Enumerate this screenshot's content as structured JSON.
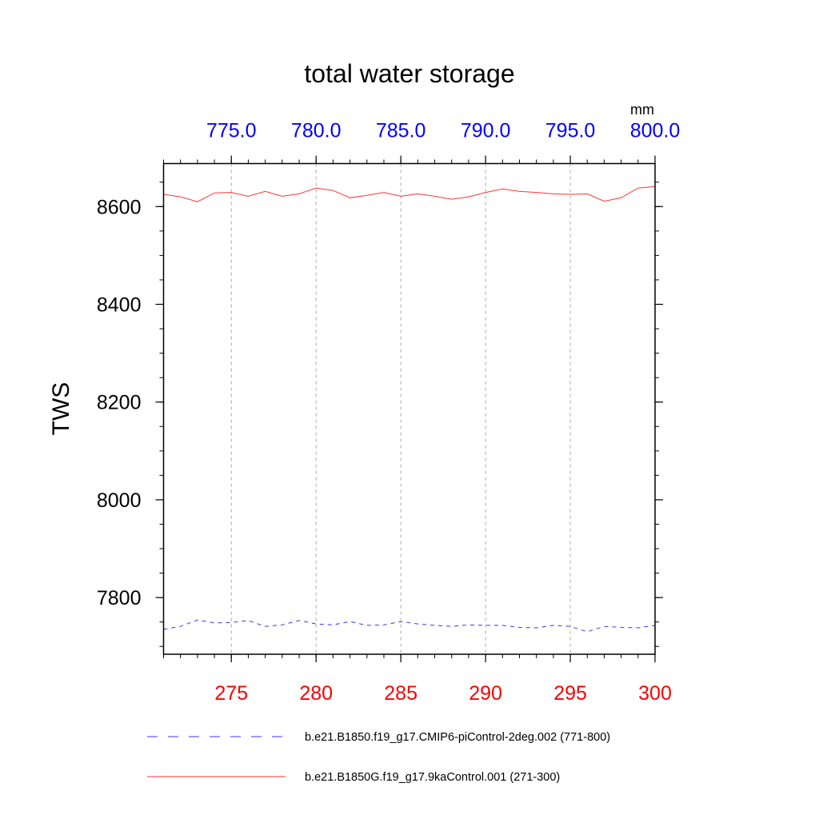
{
  "chart_data": {
    "type": "line",
    "title": "total water storage",
    "ylabel": "TWS",
    "units_label": "mm",
    "ylim": [
      7684,
      8688
    ],
    "y_ticks": [
      7800,
      8000,
      8200,
      8400,
      8600
    ],
    "y_tick_labels": [
      "7800",
      "8000",
      "8200",
      "8400",
      "8600"
    ],
    "x_bottom": {
      "range": [
        271,
        300
      ],
      "ticks": [
        275,
        280,
        285,
        290,
        295,
        300
      ],
      "tick_labels": [
        "275",
        "280",
        "285",
        "290",
        "295",
        "300"
      ],
      "color": "#ff0000"
    },
    "x_top": {
      "range": [
        771,
        800
      ],
      "ticks": [
        775,
        780,
        785,
        790,
        795,
        800
      ],
      "tick_labels": [
        "775.0",
        "780.0",
        "785.0",
        "790.0",
        "795.0",
        "800.0"
      ],
      "color": "#0000ff"
    },
    "grid": "vertical dashed",
    "legend_placement": "bottom",
    "series": [
      {
        "name": "b.e21.B1850.f19_g17.CMIP6-piControl-2deg.002 (771-800)",
        "color": "#0000ff",
        "dash": "dashed",
        "axis": "top",
        "x": [
          771,
          772,
          773,
          774,
          775,
          776,
          777,
          778,
          779,
          780,
          781,
          782,
          783,
          784,
          785,
          786,
          787,
          788,
          789,
          790,
          791,
          792,
          793,
          794,
          795,
          796,
          797,
          798,
          799,
          800
        ],
        "values": [
          7735,
          7741,
          7754,
          7748,
          7749,
          7753,
          7741,
          7744,
          7753,
          7746,
          7744,
          7751,
          7743,
          7744,
          7751,
          7746,
          7743,
          7741,
          7744,
          7743,
          7743,
          7739,
          7738,
          7743,
          7741,
          7730,
          7741,
          7739,
          7738,
          7743
        ]
      },
      {
        "name": "b.e21.B1850G.f19_g17.9kaControl.001 (271-300)",
        "color": "#ff0000",
        "dash": "solid",
        "axis": "bottom",
        "x": [
          271,
          272,
          273,
          274,
          275,
          276,
          277,
          278,
          279,
          280,
          281,
          282,
          283,
          284,
          285,
          286,
          287,
          288,
          289,
          290,
          291,
          292,
          293,
          294,
          295,
          296,
          297,
          298,
          299,
          300
        ],
        "values": [
          8625,
          8620,
          8610,
          8628,
          8629,
          8621,
          8631,
          8621,
          8626,
          8638,
          8633,
          8618,
          8623,
          8629,
          8621,
          8626,
          8621,
          8615,
          8620,
          8629,
          8636,
          8631,
          8629,
          8626,
          8625,
          8626,
          8611,
          8618,
          8638,
          8641
        ]
      }
    ]
  }
}
